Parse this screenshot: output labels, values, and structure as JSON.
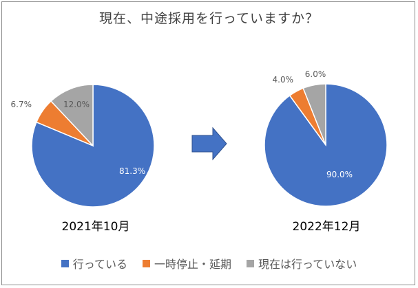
{
  "title": "現在、中途採用を行っていますか？",
  "chart_data": {
    "type": "pie",
    "categories": [
      "行っている",
      "一時停止・延期",
      "現在は行っていない"
    ],
    "colors": [
      "#4472C4",
      "#ED7D31",
      "#A5A5A5"
    ],
    "charts": [
      {
        "caption": "2021年10月",
        "values": [
          81.3,
          6.7,
          12.0
        ],
        "labels": [
          "81.3%",
          "6.7%",
          "12.0%"
        ]
      },
      {
        "caption": "2022年12月",
        "values": [
          90.0,
          4.0,
          6.0
        ],
        "labels": [
          "90.0%",
          "4.0%",
          "6.0%"
        ]
      }
    ]
  },
  "arrow_color": "#4472C4"
}
